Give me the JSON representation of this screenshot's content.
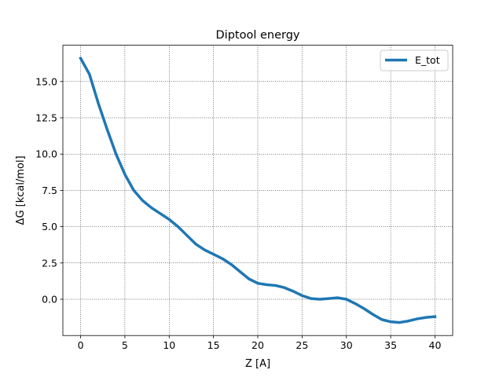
{
  "chart_data": {
    "type": "line",
    "title": "Diptool energy",
    "xlabel": "Z [A]",
    "ylabel": "ΔG [kcal/mol]",
    "xlim": [
      -2,
      42
    ],
    "ylim": [
      -2.5,
      17.5
    ],
    "xticks": [
      0,
      5,
      10,
      15,
      20,
      25,
      30,
      35,
      40
    ],
    "xtick_labels": [
      "0",
      "5",
      "10",
      "15",
      "20",
      "25",
      "30",
      "35",
      "40"
    ],
    "yticks": [
      0.0,
      2.5,
      5.0,
      7.5,
      10.0,
      12.5,
      15.0
    ],
    "ytick_labels": [
      "0.0",
      "2.5",
      "5.0",
      "7.5",
      "10.0",
      "12.5",
      "15.0"
    ],
    "grid": true,
    "legend_position": "top-right",
    "series": [
      {
        "name": "E_tot",
        "color": "#1f77b4",
        "x": [
          0,
          1,
          2,
          3,
          4,
          5,
          6,
          7,
          8,
          9,
          10,
          11,
          12,
          13,
          14,
          15,
          16,
          17,
          18,
          19,
          20,
          21,
          22,
          23,
          24,
          25,
          26,
          27,
          28,
          29,
          30,
          31,
          32,
          33,
          34,
          35,
          36,
          37,
          38,
          39,
          40
        ],
        "y": [
          16.6,
          15.5,
          13.5,
          11.7,
          10.0,
          8.6,
          7.5,
          6.8,
          6.3,
          5.9,
          5.5,
          5.0,
          4.4,
          3.8,
          3.4,
          3.1,
          2.8,
          2.4,
          1.9,
          1.4,
          1.1,
          1.0,
          0.95,
          0.8,
          0.55,
          0.25,
          0.05,
          0.0,
          0.05,
          0.1,
          0.0,
          -0.3,
          -0.65,
          -1.05,
          -1.4,
          -1.55,
          -1.6,
          -1.5,
          -1.35,
          -1.25,
          -1.2
        ]
      }
    ]
  }
}
